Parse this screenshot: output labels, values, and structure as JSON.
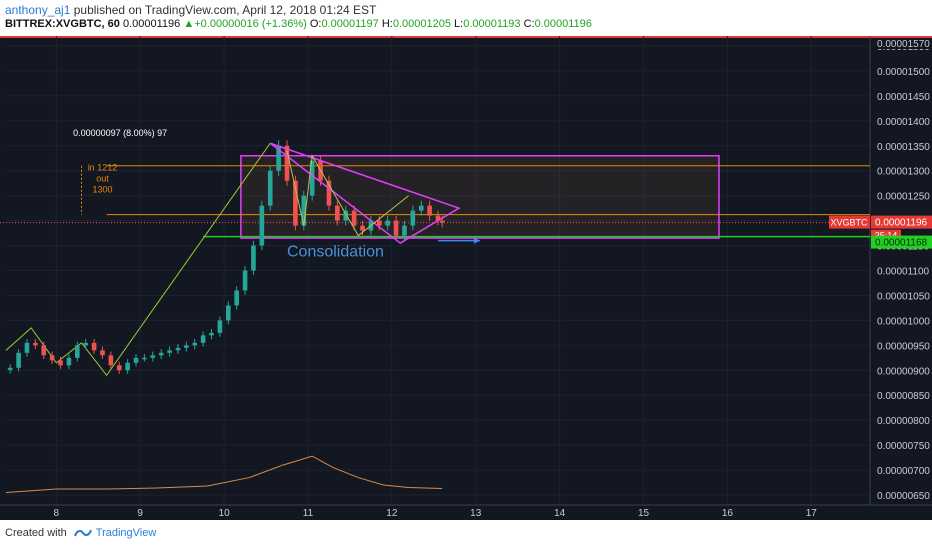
{
  "header": {
    "user": "anthony_aj1",
    "published_text": "published on TradingView.com, April 12, 2018 01:24 EST",
    "symbol": "BITTREX:XVGBTC, 60",
    "last": "0.00001196",
    "change": "+0.00000016 (+1.36%)",
    "o_label": "O:",
    "o_value": "0.00001197",
    "h_label": "H:",
    "h_value": "0.00001205",
    "l_label": "L:",
    "l_value": "0.00001193",
    "c_label": "C:",
    "c_value": "0.00001196"
  },
  "footer": {
    "created_with": "Created with",
    "brand": "TradingView"
  },
  "colors": {
    "background": "#131722",
    "up": "#26a69a",
    "down": "#ef5350",
    "pattern": "#e040fb",
    "support": "#21d021",
    "orange": "#e68a00",
    "arrow": "#3d8bfd"
  },
  "chart_data": {
    "type": "candlestick",
    "x_tick_labels": [
      "8",
      "9",
      "10",
      "11",
      "12",
      "13",
      "14",
      "15",
      "16",
      "17"
    ],
    "x_ticks": [
      8,
      9,
      10,
      11,
      12,
      13,
      14,
      15,
      16,
      17
    ],
    "x_range": [
      7.4,
      17.7
    ],
    "y_range": [
      6.3e-06,
      1.57e-05
    ],
    "y_tick_labels": [
      "0.00000650",
      "0.00000700",
      "0.00000750",
      "0.00000800",
      "0.00000850",
      "0.00000900",
      "0.00000950",
      "0.00001000",
      "0.00001050",
      "0.00001100",
      "0.00001150",
      "0.00001200",
      "0.00001250",
      "0.00001300",
      "0.00001350",
      "0.00001400",
      "0.00001450",
      "0.00001500",
      "0.00001550"
    ],
    "y_ticks": [
      6.5e-06,
      7e-06,
      7.5e-06,
      8e-06,
      8.5e-06,
      9e-06,
      9.5e-06,
      1e-05,
      1.05e-05,
      1.1e-05,
      1.15e-05,
      1.2e-05,
      1.25e-05,
      1.3e-05,
      1.35e-05,
      1.4e-05,
      1.45e-05,
      1.5e-05,
      1.55e-05
    ],
    "top_price_label": "0.00001570",
    "last_price_label": "0.00001196",
    "last_price": 1.196e-05,
    "symbol_tag": "XVGBTC",
    "timer_label": "35:14",
    "support_label": "0.00001168",
    "support_price": 1.168e-05,
    "candles_close": [
      [
        7.45,
        9.05e-06
      ],
      [
        7.55,
        9.35e-06
      ],
      [
        7.65,
        9.55e-06
      ],
      [
        7.75,
        9.5e-06
      ],
      [
        7.85,
        9.3e-06
      ],
      [
        7.95,
        9.2e-06
      ],
      [
        8.05,
        9.1e-06
      ],
      [
        8.15,
        9.25e-06
      ],
      [
        8.25,
        9.5e-06
      ],
      [
        8.35,
        9.55e-06
      ],
      [
        8.45,
        9.4e-06
      ],
      [
        8.55,
        9.3e-06
      ],
      [
        8.65,
        9.1e-06
      ],
      [
        8.75,
        9e-06
      ],
      [
        8.85,
        9.15e-06
      ],
      [
        8.95,
        9.25e-06
      ],
      [
        9.05,
        9.25e-06
      ],
      [
        9.15,
        9.3e-06
      ],
      [
        9.25,
        9.35e-06
      ],
      [
        9.35,
        9.4e-06
      ],
      [
        9.45,
        9.45e-06
      ],
      [
        9.55,
        9.5e-06
      ],
      [
        9.65,
        9.55e-06
      ],
      [
        9.75,
        9.7e-06
      ],
      [
        9.85,
        9.75e-06
      ],
      [
        9.95,
        1e-05
      ],
      [
        10.05,
        1.03e-05
      ],
      [
        10.15,
        1.06e-05
      ],
      [
        10.25,
        1.1e-05
      ],
      [
        10.35,
        1.15e-05
      ],
      [
        10.45,
        1.23e-05
      ],
      [
        10.55,
        1.3e-05
      ],
      [
        10.65,
        1.35e-05
      ],
      [
        10.75,
        1.28e-05
      ],
      [
        10.85,
        1.19e-05
      ],
      [
        10.95,
        1.25e-05
      ],
      [
        11.05,
        1.32e-05
      ],
      [
        11.15,
        1.28e-05
      ],
      [
        11.25,
        1.23e-05
      ],
      [
        11.35,
        1.2e-05
      ],
      [
        11.45,
        1.22e-05
      ],
      [
        11.55,
        1.19e-05
      ],
      [
        11.65,
        1.18e-05
      ],
      [
        11.75,
        1.2e-05
      ],
      [
        11.85,
        1.19e-05
      ],
      [
        11.95,
        1.2e-05
      ],
      [
        12.05,
        1.17e-05
      ],
      [
        12.15,
        1.19e-05
      ],
      [
        12.25,
        1.22e-05
      ],
      [
        12.35,
        1.23e-05
      ],
      [
        12.45,
        1.21e-05
      ],
      [
        12.55,
        1.2e-05
      ],
      [
        12.6,
        1.196e-05
      ]
    ],
    "volume_line": [
      [
        7.4,
        6.55e-06
      ],
      [
        8.0,
        6.62e-06
      ],
      [
        8.6,
        6.62e-06
      ],
      [
        9.2,
        6.64e-06
      ],
      [
        9.8,
        6.68e-06
      ],
      [
        10.3,
        6.85e-06
      ],
      [
        10.7,
        7.1e-06
      ],
      [
        11.05,
        7.28e-06
      ],
      [
        11.3,
        7.05e-06
      ],
      [
        11.6,
        6.85e-06
      ],
      [
        11.9,
        6.7e-06
      ],
      [
        12.2,
        6.65e-06
      ],
      [
        12.6,
        6.63e-06
      ]
    ],
    "trend_line_points": [
      [
        7.4,
        9.4e-06
      ],
      [
        7.7,
        9.85e-06
      ],
      [
        8.0,
        9.15e-06
      ],
      [
        8.3,
        9.55e-06
      ],
      [
        8.6,
        8.9e-06
      ],
      [
        10.55,
        1.355e-05
      ]
    ],
    "triangle": [
      [
        10.55,
        1.355e-05
      ],
      [
        12.8,
        1.225e-05
      ],
      [
        12.1,
        1.155e-05
      ]
    ],
    "triangle_inner": [
      [
        10.75,
        1.34e-05
      ],
      [
        10.95,
        1.19e-05
      ],
      [
        11.05,
        1.33e-05
      ],
      [
        11.6,
        1.17e-05
      ],
      [
        12.2,
        1.25e-05
      ]
    ],
    "box": {
      "x0": 10.2,
      "x1": 15.9,
      "y0": 1.165e-05,
      "y1": 1.33e-05
    },
    "measure_label": "0.00000097 (8.00%) 97",
    "measure_lines": [
      1.31e-05,
      1.212e-05
    ],
    "position_text": [
      "in 1212",
      "out",
      "1300"
    ],
    "annotation": "Consolidation",
    "annotation_anchor": [
      10.75,
      1.14e-05
    ],
    "arrow": [
      [
        12.55,
        1.16e-05
      ],
      [
        13.05,
        1.16e-05
      ]
    ]
  }
}
